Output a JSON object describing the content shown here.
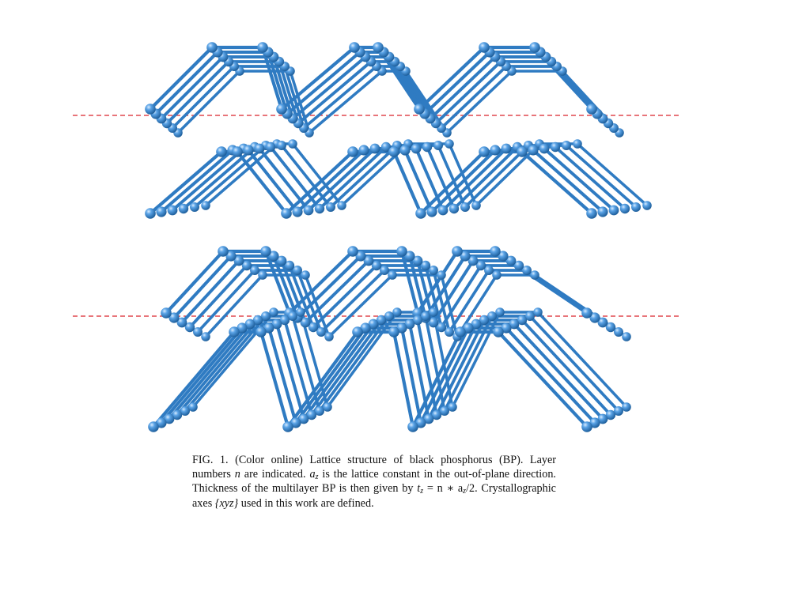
{
  "figure": {
    "atom_color": "#3f8fd6",
    "bond_color": "#2f7bc2",
    "guide_line_color": "#d9232a"
  },
  "caption": {
    "label": "FIG. 1.",
    "t1": "(Color online) Lattice structure of black phosphorus (BP). Layer numbers ",
    "n": "n",
    "t2": " are indicated. ",
    "a": "a",
    "z": "z",
    "t3": " is the lattice constant in the out-of-plane direction. Thickness of the multilayer BP is then given by ",
    "t": "t",
    "eq": " = n ∗ a",
    "t4": "/2. Crystallographic axes ",
    "axes": "{xyz}",
    "t5": " used in this work are defined."
  }
}
